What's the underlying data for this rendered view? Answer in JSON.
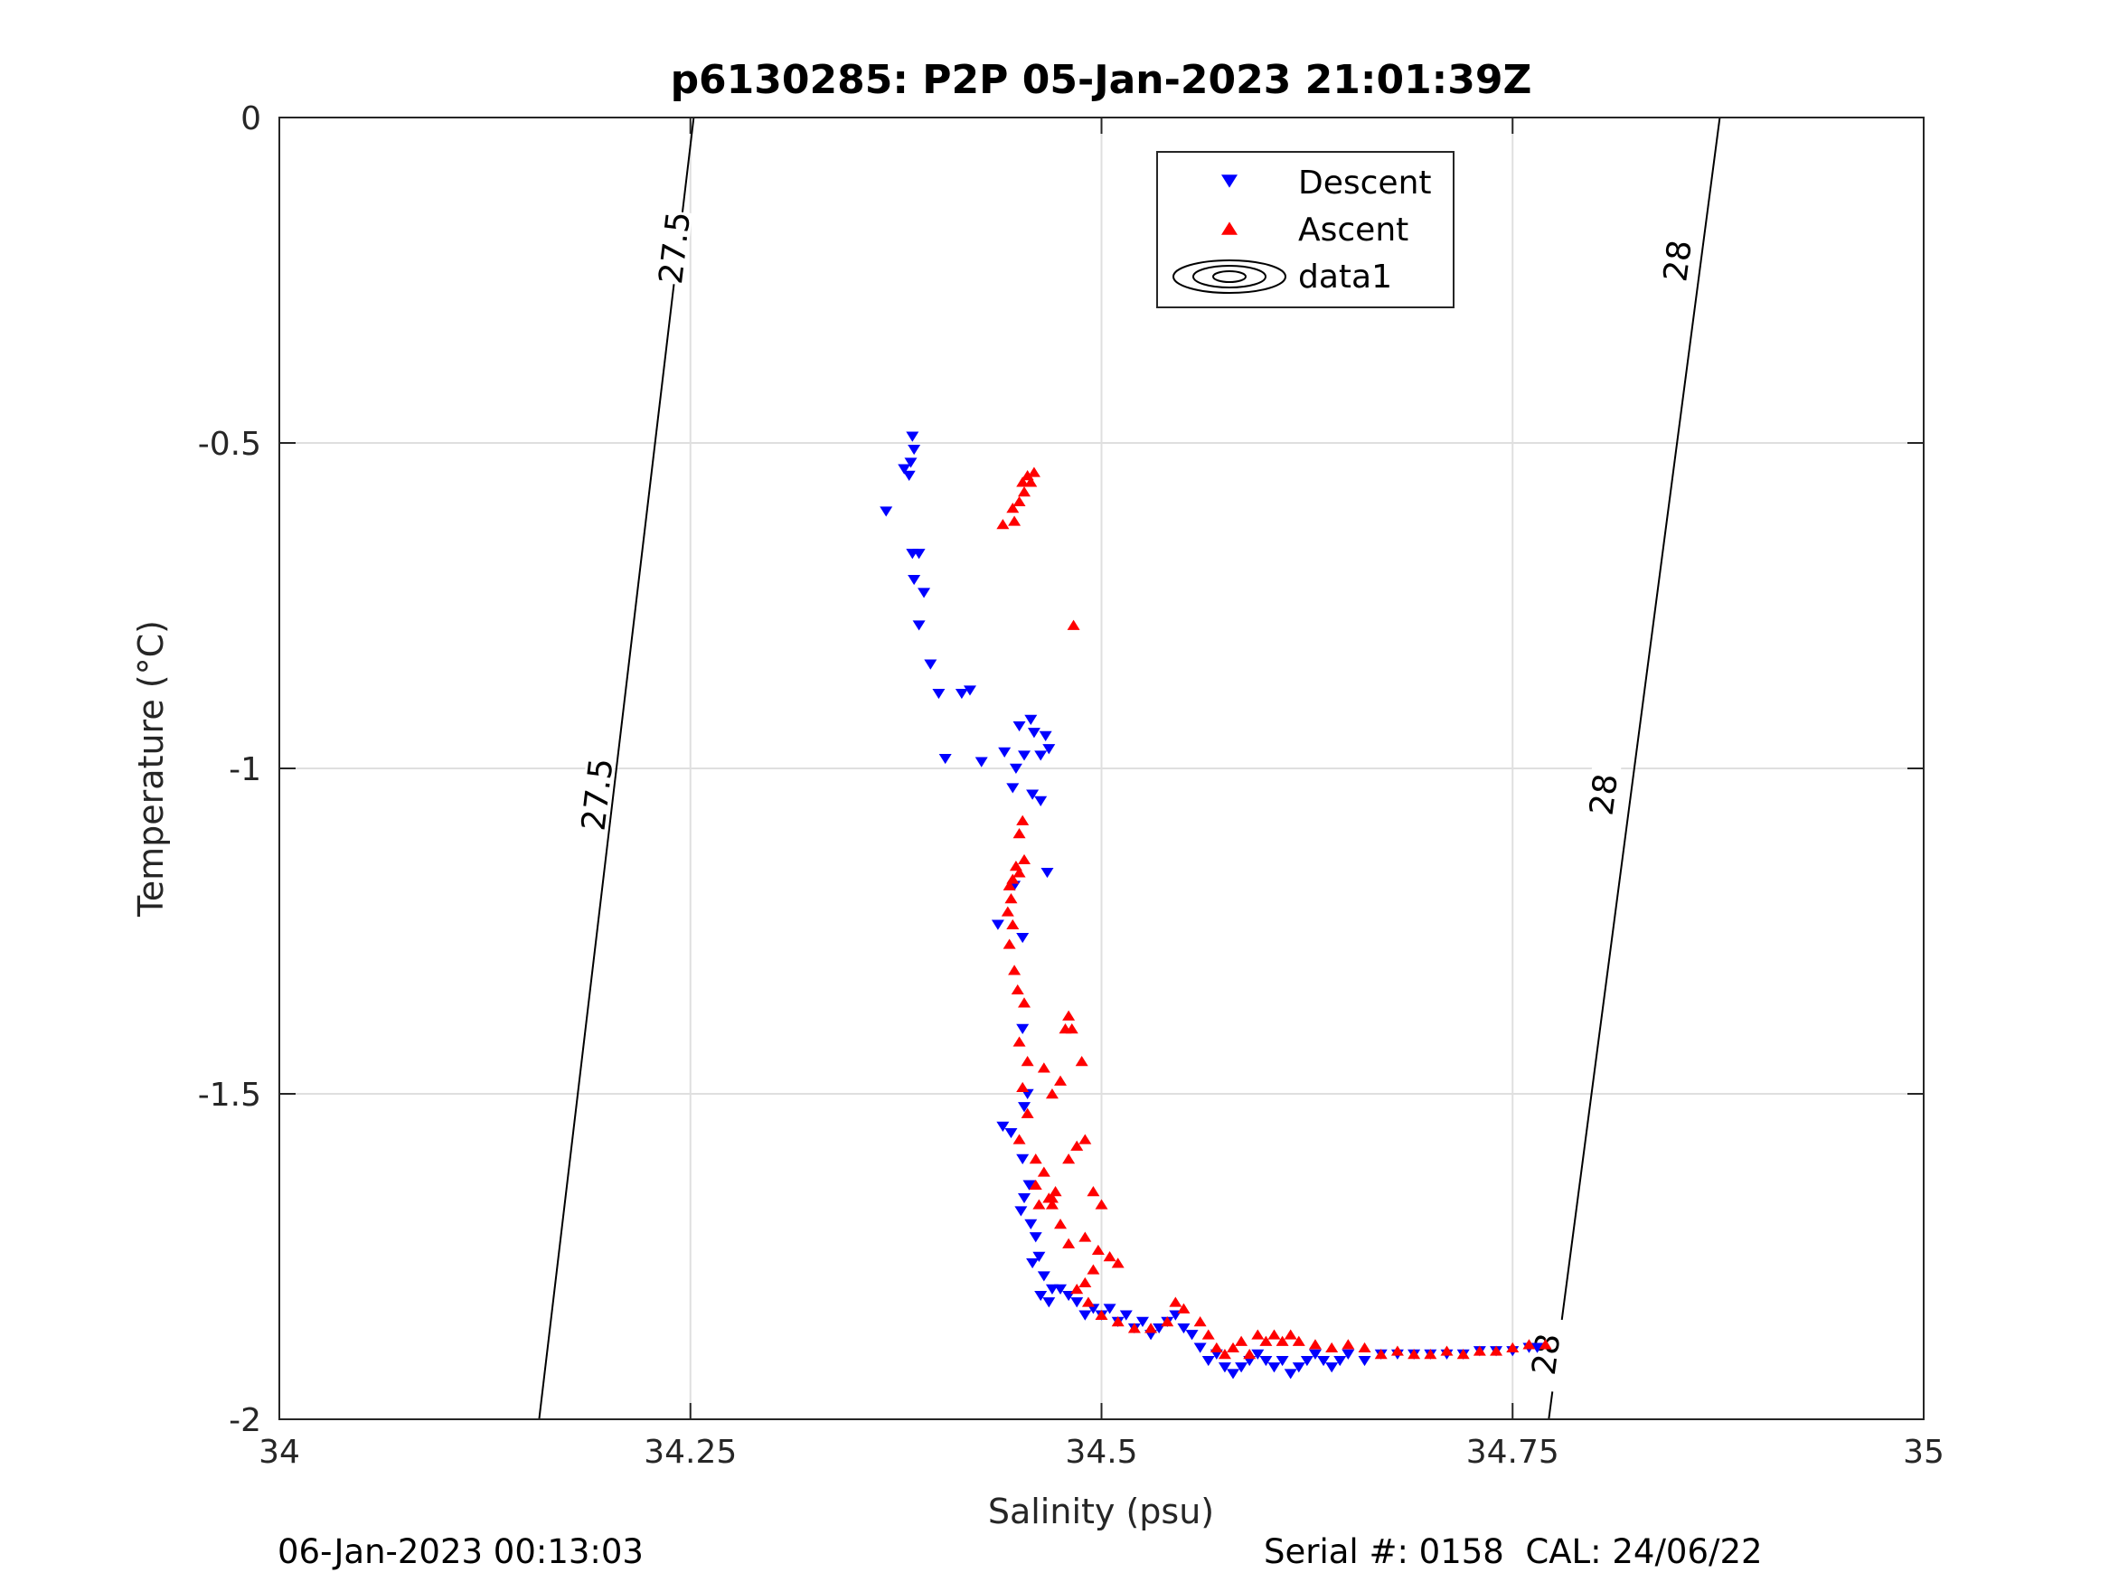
{
  "chart_data": {
    "type": "scatter",
    "title": "p6130285: P2P 05-Jan-2023 21:01:39Z",
    "xlabel": "Salinity (psu)",
    "ylabel": "Temperature (°C)",
    "xlim": [
      34,
      35
    ],
    "ylim": [
      -2,
      0
    ],
    "xticks": [
      34,
      34.25,
      34.5,
      34.75,
      35
    ],
    "xtick_labels": [
      "34",
      "34.25",
      "34.5",
      "34.75",
      "35"
    ],
    "yticks": [
      -2,
      -1.5,
      -1,
      -0.5,
      0
    ],
    "ytick_labels": [
      "-2",
      "-1.5",
      "-1",
      "-0.5",
      "0"
    ],
    "grid": true,
    "legend": {
      "position": "top-center",
      "entries": [
        "Descent",
        "Ascent",
        "data1"
      ]
    },
    "series": [
      {
        "name": "Descent",
        "marker": "triangle-down",
        "color": "#0000ff",
        "x": [
          34.385,
          34.386,
          34.384,
          34.383,
          34.38,
          34.369,
          34.385,
          34.389,
          34.386,
          34.392,
          34.389,
          34.396,
          34.401,
          34.415,
          34.42,
          34.405,
          34.441,
          34.427,
          34.457,
          34.45,
          34.459,
          34.466,
          34.468,
          34.463,
          34.448,
          34.453,
          34.446,
          34.458,
          34.463,
          34.467,
          34.447,
          34.452,
          34.437,
          34.452,
          34.455,
          34.453,
          34.44,
          34.445,
          34.452,
          34.456,
          34.453,
          34.451,
          34.457,
          34.46,
          34.462,
          34.458,
          34.465,
          34.47,
          34.463,
          34.468,
          34.475,
          34.48,
          34.485,
          34.49,
          34.495,
          34.5,
          34.505,
          34.51,
          34.515,
          34.52,
          34.525,
          34.53,
          34.535,
          34.54,
          34.545,
          34.55,
          34.555,
          34.56,
          34.565,
          34.57,
          34.575,
          34.58,
          34.585,
          34.59,
          34.595,
          34.6,
          34.605,
          34.61,
          34.615,
          34.62,
          34.625,
          34.63,
          34.635,
          34.64,
          34.645,
          34.65,
          34.66,
          34.67,
          34.68,
          34.69,
          34.7,
          34.71,
          34.72,
          34.73,
          34.74,
          34.75,
          34.76,
          34.765
        ],
        "y": [
          -0.49,
          -0.51,
          -0.53,
          -0.55,
          -0.54,
          -0.605,
          -0.67,
          -0.67,
          -0.71,
          -0.73,
          -0.78,
          -0.84,
          -0.885,
          -0.885,
          -0.88,
          -0.985,
          -0.975,
          -0.99,
          -0.925,
          -0.935,
          -0.945,
          -0.95,
          -0.97,
          -0.98,
          -1.0,
          -0.98,
          -1.03,
          -1.04,
          -1.05,
          -1.16,
          -1.18,
          -1.26,
          -1.24,
          -1.4,
          -1.5,
          -1.52,
          -1.55,
          -1.56,
          -1.6,
          -1.64,
          -1.66,
          -1.68,
          -1.7,
          -1.72,
          -1.75,
          -1.76,
          -1.78,
          -1.8,
          -1.81,
          -1.82,
          -1.8,
          -1.81,
          -1.82,
          -1.84,
          -1.83,
          -1.84,
          -1.83,
          -1.85,
          -1.84,
          -1.86,
          -1.85,
          -1.87,
          -1.86,
          -1.85,
          -1.84,
          -1.86,
          -1.87,
          -1.89,
          -1.91,
          -1.9,
          -1.92,
          -1.93,
          -1.92,
          -1.91,
          -1.9,
          -1.91,
          -1.92,
          -1.91,
          -1.93,
          -1.92,
          -1.91,
          -1.9,
          -1.91,
          -1.92,
          -1.91,
          -1.9,
          -1.91,
          -1.9,
          -1.9,
          -1.9,
          -1.9,
          -1.9,
          -1.9,
          -1.895,
          -1.895,
          -1.895,
          -1.89,
          -1.89
        ]
      },
      {
        "name": "Ascent",
        "marker": "triangle-up",
        "color": "#ff0000",
        "x": [
          34.459,
          34.455,
          34.457,
          34.452,
          34.453,
          34.45,
          34.446,
          34.447,
          34.44,
          34.483,
          34.452,
          34.45,
          34.453,
          34.448,
          34.45,
          34.446,
          34.444,
          34.445,
          34.443,
          34.446,
          34.444,
          34.447,
          34.449,
          34.453,
          34.45,
          34.455,
          34.452,
          34.48,
          34.478,
          34.482,
          34.488,
          34.465,
          34.47,
          34.475,
          34.455,
          34.45,
          34.46,
          34.465,
          34.47,
          34.46,
          34.485,
          34.48,
          34.49,
          34.495,
          34.475,
          34.47,
          34.462,
          34.468,
          34.472,
          34.48,
          34.49,
          34.5,
          34.498,
          34.505,
          34.51,
          34.495,
          34.49,
          34.485,
          34.492,
          34.5,
          34.51,
          34.52,
          34.53,
          34.54,
          34.545,
          34.55,
          34.56,
          34.565,
          34.57,
          34.575,
          34.58,
          34.585,
          34.59,
          34.595,
          34.6,
          34.605,
          34.61,
          34.615,
          34.62,
          34.63,
          34.64,
          34.65,
          34.66,
          34.67,
          34.68,
          34.69,
          34.7,
          34.71,
          34.72,
          34.73,
          34.74,
          34.75,
          34.76,
          34.77
        ],
        "y": [
          -0.545,
          -0.55,
          -0.56,
          -0.56,
          -0.575,
          -0.59,
          -0.6,
          -0.62,
          -0.625,
          -0.78,
          -1.08,
          -1.1,
          -1.14,
          -1.15,
          -1.16,
          -1.17,
          -1.18,
          -1.2,
          -1.22,
          -1.24,
          -1.27,
          -1.31,
          -1.34,
          -1.36,
          -1.42,
          -1.45,
          -1.49,
          -1.38,
          -1.4,
          -1.4,
          -1.45,
          -1.46,
          -1.5,
          -1.48,
          -1.53,
          -1.57,
          -1.6,
          -1.62,
          -1.66,
          -1.64,
          -1.58,
          -1.6,
          -1.57,
          -1.65,
          -1.7,
          -1.67,
          -1.67,
          -1.66,
          -1.65,
          -1.73,
          -1.72,
          -1.67,
          -1.74,
          -1.75,
          -1.76,
          -1.77,
          -1.79,
          -1.8,
          -1.82,
          -1.84,
          -1.85,
          -1.86,
          -1.86,
          -1.85,
          -1.82,
          -1.83,
          -1.85,
          -1.87,
          -1.89,
          -1.9,
          -1.89,
          -1.88,
          -1.9,
          -1.87,
          -1.88,
          -1.87,
          -1.88,
          -1.87,
          -1.88,
          -1.885,
          -1.89,
          -1.885,
          -1.89,
          -1.9,
          -1.895,
          -1.9,
          -1.9,
          -1.895,
          -1.9,
          -1.895,
          -1.895,
          -1.89,
          -1.885,
          -1.885
        ]
      }
    ],
    "contours": [
      {
        "level": "27.5",
        "points": [
          [
            34.158,
            -2
          ],
          [
            34.252,
            0
          ]
        ],
        "labels": [
          [
            34.193,
            -1.04
          ],
          [
            34.24,
            -0.2
          ]
        ]
      },
      {
        "level": "28",
        "points": [
          [
            34.772,
            -2
          ],
          [
            34.876,
            0
          ]
        ],
        "labels": [
          [
            34.77,
            -1.9
          ],
          [
            34.805,
            -1.04
          ],
          [
            34.85,
            -0.22
          ]
        ]
      }
    ]
  },
  "footer": {
    "left": "06-Jan-2023 00:13:03",
    "right": "Serial #: 0158  CAL: 24/06/22"
  },
  "colors": {
    "descent": "#0000ff",
    "ascent": "#ff0000",
    "grid": "#dfdfdf",
    "axis": "#262626"
  }
}
